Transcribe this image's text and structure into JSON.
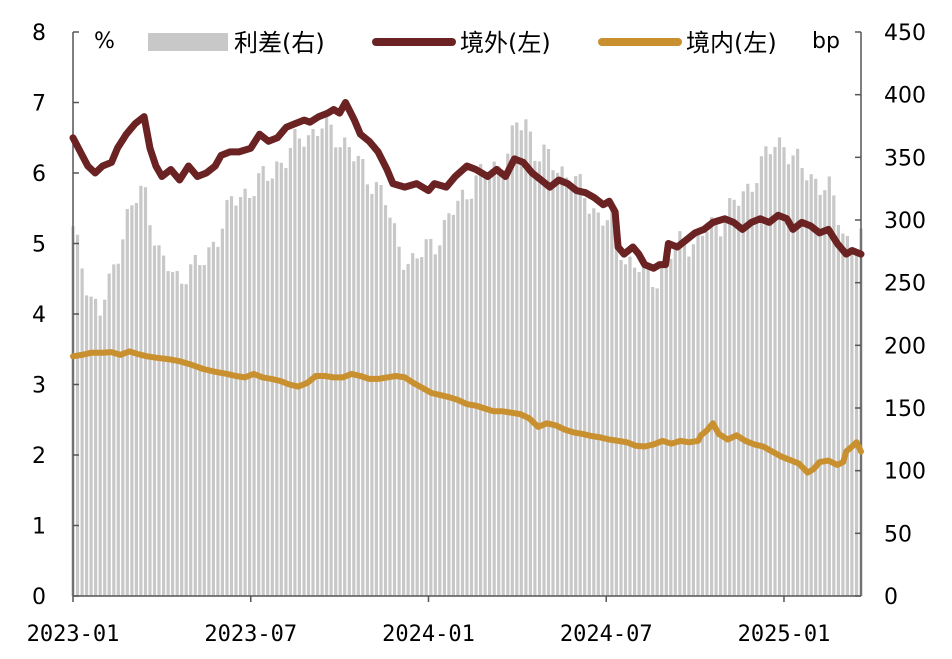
{
  "chart_data": {
    "type": "bar+line",
    "title": "",
    "left_axis": {
      "unit": "%",
      "ylim": [
        0,
        8
      ],
      "ticks": [
        "0",
        "1",
        "2",
        "3",
        "4",
        "5",
        "6",
        "7",
        "8"
      ]
    },
    "right_axis": {
      "unit": "bp",
      "ylim": [
        0,
        450
      ],
      "ticks": [
        "0",
        "50",
        "100",
        "150",
        "200",
        "250",
        "300",
        "350",
        "400",
        "450"
      ]
    },
    "x_ticks": [
      "2023-01",
      "2023-07",
      "2024-01",
      "2024-07",
      "2025-01"
    ],
    "x_tick_positions": [
      0,
      6,
      12,
      18,
      24
    ],
    "x_range": [
      0,
      26.6
    ],
    "legend": {
      "spread": "利差(右)",
      "offshore": "境外(左)",
      "onshore": "境内(左)"
    },
    "colors": {
      "spread": "#c8c8c8",
      "offshore": "#6b2222",
      "onshore": "#c9902f",
      "axis": "#555555"
    },
    "series": [
      {
        "name": "境外(左)",
        "axis": "left",
        "points": [
          [
            0.0,
            6.5
          ],
          [
            0.25,
            6.3
          ],
          [
            0.5,
            6.1
          ],
          [
            0.75,
            6.0
          ],
          [
            1.0,
            6.1
          ],
          [
            1.3,
            6.15
          ],
          [
            1.5,
            6.35
          ],
          [
            1.8,
            6.55
          ],
          [
            2.1,
            6.7
          ],
          [
            2.4,
            6.8
          ],
          [
            2.6,
            6.35
          ],
          [
            2.8,
            6.1
          ],
          [
            3.0,
            5.95
          ],
          [
            3.3,
            6.05
          ],
          [
            3.6,
            5.9
          ],
          [
            3.9,
            6.1
          ],
          [
            4.2,
            5.95
          ],
          [
            4.5,
            6.0
          ],
          [
            4.8,
            6.1
          ],
          [
            5.0,
            6.25
          ],
          [
            5.3,
            6.3
          ],
          [
            5.6,
            6.3
          ],
          [
            6.0,
            6.35
          ],
          [
            6.3,
            6.55
          ],
          [
            6.6,
            6.45
          ],
          [
            6.9,
            6.5
          ],
          [
            7.2,
            6.65
          ],
          [
            7.5,
            6.7
          ],
          [
            7.8,
            6.75
          ],
          [
            8.0,
            6.72
          ],
          [
            8.3,
            6.8
          ],
          [
            8.6,
            6.85
          ],
          [
            8.8,
            6.9
          ],
          [
            9.0,
            6.85
          ],
          [
            9.2,
            7.0
          ],
          [
            9.5,
            6.75
          ],
          [
            9.7,
            6.55
          ],
          [
            10.0,
            6.45
          ],
          [
            10.3,
            6.3
          ],
          [
            10.6,
            6.05
          ],
          [
            10.8,
            5.85
          ],
          [
            11.2,
            5.8
          ],
          [
            11.6,
            5.85
          ],
          [
            12.0,
            5.75
          ],
          [
            12.2,
            5.85
          ],
          [
            12.6,
            5.8
          ],
          [
            12.9,
            5.95
          ],
          [
            13.3,
            6.1
          ],
          [
            13.6,
            6.05
          ],
          [
            14.0,
            5.95
          ],
          [
            14.3,
            6.05
          ],
          [
            14.6,
            5.95
          ],
          [
            14.9,
            6.2
          ],
          [
            15.2,
            6.15
          ],
          [
            15.5,
            6.0
          ],
          [
            15.8,
            5.9
          ],
          [
            16.1,
            5.8
          ],
          [
            16.4,
            5.9
          ],
          [
            16.7,
            5.85
          ],
          [
            17.0,
            5.75
          ],
          [
            17.3,
            5.72
          ],
          [
            17.6,
            5.65
          ],
          [
            17.9,
            5.55
          ],
          [
            18.1,
            5.6
          ],
          [
            18.3,
            5.45
          ],
          [
            18.4,
            4.95
          ],
          [
            18.6,
            4.85
          ],
          [
            18.9,
            4.95
          ],
          [
            19.1,
            4.85
          ],
          [
            19.3,
            4.7
          ],
          [
            19.6,
            4.65
          ],
          [
            19.8,
            4.7
          ],
          [
            20.0,
            4.7
          ],
          [
            20.1,
            5.0
          ],
          [
            20.4,
            4.95
          ],
          [
            20.7,
            5.05
          ],
          [
            21.0,
            5.15
          ],
          [
            21.3,
            5.2
          ],
          [
            21.6,
            5.3
          ],
          [
            22.0,
            5.35
          ],
          [
            22.3,
            5.3
          ],
          [
            22.6,
            5.2
          ],
          [
            22.9,
            5.3
          ],
          [
            23.2,
            5.35
          ],
          [
            23.5,
            5.3
          ],
          [
            23.8,
            5.4
          ],
          [
            24.1,
            5.35
          ],
          [
            24.3,
            5.2
          ],
          [
            24.6,
            5.3
          ],
          [
            24.9,
            5.25
          ],
          [
            25.2,
            5.15
          ],
          [
            25.5,
            5.2
          ],
          [
            25.8,
            5.0
          ],
          [
            26.1,
            4.85
          ],
          [
            26.3,
            4.9
          ],
          [
            26.6,
            4.85
          ]
        ]
      },
      {
        "name": "境内(左)",
        "axis": "left",
        "points": [
          [
            0.0,
            3.4
          ],
          [
            0.3,
            3.42
          ],
          [
            0.6,
            3.45
          ],
          [
            1.0,
            3.45
          ],
          [
            1.3,
            3.46
          ],
          [
            1.6,
            3.42
          ],
          [
            1.9,
            3.47
          ],
          [
            2.2,
            3.43
          ],
          [
            2.5,
            3.4
          ],
          [
            2.8,
            3.38
          ],
          [
            3.2,
            3.36
          ],
          [
            3.6,
            3.33
          ],
          [
            4.0,
            3.28
          ],
          [
            4.4,
            3.22
          ],
          [
            4.8,
            3.18
          ],
          [
            5.2,
            3.15
          ],
          [
            5.5,
            3.12
          ],
          [
            5.8,
            3.1
          ],
          [
            6.1,
            3.15
          ],
          [
            6.4,
            3.1
          ],
          [
            6.7,
            3.08
          ],
          [
            7.0,
            3.05
          ],
          [
            7.3,
            3.0
          ],
          [
            7.6,
            2.97
          ],
          [
            7.9,
            3.02
          ],
          [
            8.2,
            3.12
          ],
          [
            8.5,
            3.12
          ],
          [
            8.8,
            3.1
          ],
          [
            9.1,
            3.1
          ],
          [
            9.4,
            3.15
          ],
          [
            9.7,
            3.12
          ],
          [
            10.0,
            3.08
          ],
          [
            10.3,
            3.08
          ],
          [
            10.6,
            3.1
          ],
          [
            10.9,
            3.12
          ],
          [
            11.2,
            3.1
          ],
          [
            11.5,
            3.02
          ],
          [
            11.8,
            2.95
          ],
          [
            12.1,
            2.88
          ],
          [
            12.4,
            2.85
          ],
          [
            12.7,
            2.82
          ],
          [
            13.0,
            2.78
          ],
          [
            13.3,
            2.72
          ],
          [
            13.6,
            2.7
          ],
          [
            13.9,
            2.66
          ],
          [
            14.2,
            2.62
          ],
          [
            14.5,
            2.62
          ],
          [
            14.8,
            2.6
          ],
          [
            15.1,
            2.58
          ],
          [
            15.4,
            2.52
          ],
          [
            15.7,
            2.4
          ],
          [
            16.0,
            2.45
          ],
          [
            16.3,
            2.42
          ],
          [
            16.6,
            2.36
          ],
          [
            16.9,
            2.32
          ],
          [
            17.2,
            2.3
          ],
          [
            17.5,
            2.27
          ],
          [
            17.8,
            2.25
          ],
          [
            18.1,
            2.22
          ],
          [
            18.4,
            2.2
          ],
          [
            18.7,
            2.18
          ],
          [
            19.0,
            2.13
          ],
          [
            19.3,
            2.12
          ],
          [
            19.6,
            2.15
          ],
          [
            19.9,
            2.2
          ],
          [
            20.2,
            2.16
          ],
          [
            20.5,
            2.2
          ],
          [
            20.8,
            2.18
          ],
          [
            21.1,
            2.2
          ],
          [
            21.2,
            2.28
          ],
          [
            21.4,
            2.35
          ],
          [
            21.6,
            2.45
          ],
          [
            21.8,
            2.3
          ],
          [
            22.1,
            2.22
          ],
          [
            22.4,
            2.28
          ],
          [
            22.7,
            2.2
          ],
          [
            23.0,
            2.15
          ],
          [
            23.3,
            2.12
          ],
          [
            23.6,
            2.05
          ],
          [
            23.9,
            1.98
          ],
          [
            24.2,
            1.93
          ],
          [
            24.5,
            1.88
          ],
          [
            24.8,
            1.75
          ],
          [
            25.0,
            1.8
          ],
          [
            25.2,
            1.9
          ],
          [
            25.5,
            1.92
          ],
          [
            25.8,
            1.86
          ],
          [
            26.0,
            1.9
          ],
          [
            26.1,
            2.05
          ],
          [
            26.3,
            2.12
          ],
          [
            26.45,
            2.18
          ],
          [
            26.6,
            2.05
          ]
        ]
      },
      {
        "name": "利差(右)",
        "axis": "right",
        "type": "bar",
        "points": [
          [
            0.0,
            290
          ],
          [
            0.3,
            265
          ],
          [
            0.6,
            240
          ],
          [
            0.9,
            225
          ],
          [
            1.2,
            245
          ],
          [
            1.5,
            275
          ],
          [
            1.8,
            300
          ],
          [
            2.1,
            315
          ],
          [
            2.4,
            325
          ],
          [
            2.7,
            295
          ],
          [
            3.0,
            265
          ],
          [
            3.3,
            260
          ],
          [
            3.6,
            250
          ],
          [
            3.9,
            265
          ],
          [
            4.2,
            260
          ],
          [
            4.5,
            270
          ],
          [
            4.8,
            285
          ],
          [
            5.1,
            300
          ],
          [
            5.4,
            315
          ],
          [
            5.7,
            320
          ],
          [
            6.0,
            325
          ],
          [
            6.3,
            330
          ],
          [
            6.6,
            335
          ],
          [
            6.9,
            345
          ],
          [
            7.2,
            350
          ],
          [
            7.5,
            360
          ],
          [
            7.8,
            368
          ],
          [
            8.1,
            370
          ],
          [
            8.4,
            375
          ],
          [
            8.7,
            370
          ],
          [
            9.0,
            365
          ],
          [
            9.3,
            360
          ],
          [
            9.6,
            345
          ],
          [
            9.9,
            335
          ],
          [
            10.2,
            330
          ],
          [
            10.5,
            320
          ],
          [
            10.8,
            290
          ],
          [
            11.1,
            275
          ],
          [
            11.4,
            265
          ],
          [
            11.7,
            270
          ],
          [
            12.0,
            280
          ],
          [
            12.3,
            285
          ],
          [
            12.6,
            295
          ],
          [
            12.9,
            310
          ],
          [
            13.2,
            320
          ],
          [
            13.5,
            330
          ],
          [
            13.8,
            335
          ],
          [
            14.1,
            340
          ],
          [
            14.4,
            345
          ],
          [
            14.7,
            355
          ],
          [
            15.0,
            375
          ],
          [
            15.3,
            380
          ],
          [
            15.6,
            355
          ],
          [
            15.9,
            350
          ],
          [
            16.2,
            345
          ],
          [
            16.5,
            340
          ],
          [
            16.8,
            335
          ],
          [
            17.1,
            325
          ],
          [
            17.4,
            315
          ],
          [
            17.7,
            305
          ],
          [
            18.0,
            300
          ],
          [
            18.3,
            295
          ],
          [
            18.6,
            270
          ],
          [
            18.9,
            265
          ],
          [
            19.2,
            260
          ],
          [
            19.5,
            255
          ],
          [
            19.8,
            255
          ],
          [
            20.1,
            270
          ],
          [
            20.4,
            280
          ],
          [
            20.7,
            285
          ],
          [
            21.0,
            280
          ],
          [
            21.3,
            290
          ],
          [
            21.6,
            295
          ],
          [
            21.9,
            300
          ],
          [
            22.2,
            310
          ],
          [
            22.5,
            315
          ],
          [
            22.8,
            325
          ],
          [
            23.1,
            340
          ],
          [
            23.4,
            350
          ],
          [
            23.7,
            360
          ],
          [
            24.0,
            362
          ],
          [
            24.3,
            350
          ],
          [
            24.6,
            340
          ],
          [
            24.9,
            335
          ],
          [
            25.2,
            330
          ],
          [
            25.5,
            325
          ],
          [
            25.8,
            305
          ],
          [
            26.1,
            285
          ],
          [
            26.4,
            280
          ],
          [
            26.6,
            285
          ]
        ]
      }
    ]
  }
}
